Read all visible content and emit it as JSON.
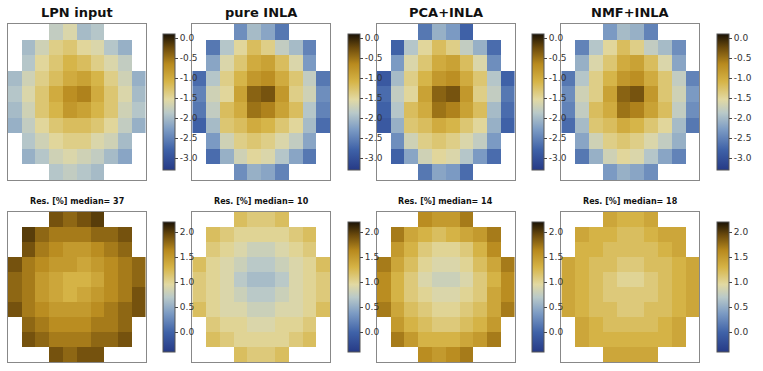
{
  "chart_data": [
    {
      "type": "heatmap",
      "title": "LPN input",
      "tick_labels": false,
      "colorbar_range": [
        -3.3,
        0.1
      ],
      "colorbar_ticks": [
        {
          "value": 0,
          "label": "0.0"
        },
        {
          "value": -0.5,
          "label": "-0.5"
        },
        {
          "value": -1,
          "label": "-1.0"
        },
        {
          "value": -1.5,
          "label": "-1.5"
        },
        {
          "value": -2,
          "label": "-2.0"
        },
        {
          "value": -2.5,
          "label": "-2.5"
        },
        {
          "value": -3,
          "label": "-3.0"
        }
      ],
      "z": [
        [
          null,
          null,
          null,
          -1.8,
          -1.6,
          -2.0,
          -1.9,
          null,
          null,
          null
        ],
        [
          null,
          -2.0,
          -1.7,
          -1.4,
          -1.3,
          -1.5,
          -1.6,
          -1.9,
          -2.1,
          null
        ],
        [
          null,
          -1.9,
          -1.5,
          -1.3,
          -1.1,
          -1.2,
          -1.4,
          -1.6,
          -1.8,
          null
        ],
        [
          -2.0,
          -1.7,
          -1.4,
          -1.2,
          -1.0,
          -0.9,
          -1.1,
          -1.4,
          -1.7,
          -2.1
        ],
        [
          -1.9,
          -1.6,
          -1.3,
          -1.0,
          -0.7,
          -0.6,
          -1.0,
          -1.3,
          -1.6,
          -2.0
        ],
        [
          -2.0,
          -1.7,
          -1.3,
          -1.1,
          -0.8,
          -0.9,
          -1.1,
          -1.3,
          -1.7,
          -1.9
        ],
        [
          -2.1,
          -1.8,
          -1.5,
          -1.3,
          -1.2,
          -1.2,
          -1.3,
          -1.5,
          -1.8,
          -2.1
        ],
        [
          null,
          -1.9,
          -1.7,
          -1.5,
          -1.4,
          -1.4,
          -1.6,
          -1.7,
          -2.0,
          null
        ],
        [
          null,
          -2.1,
          -1.9,
          -1.7,
          -1.6,
          -1.7,
          -1.8,
          -2.0,
          -2.2,
          null
        ],
        [
          null,
          null,
          null,
          -1.9,
          -1.8,
          -1.9,
          -2.0,
          null,
          null,
          null
        ]
      ]
    },
    {
      "type": "heatmap",
      "title": "pure INLA",
      "tick_labels": false,
      "colorbar_range": [
        -3.3,
        0.1
      ],
      "colorbar_ticks": [
        {
          "value": 0,
          "label": "0.0"
        },
        {
          "value": -0.5,
          "label": "-0.5"
        },
        {
          "value": -1,
          "label": "-1.0"
        },
        {
          "value": -1.5,
          "label": "-1.5"
        },
        {
          "value": -2,
          "label": "-2.0"
        },
        {
          "value": -2.5,
          "label": "-2.5"
        },
        {
          "value": -3,
          "label": "-3.0"
        }
      ],
      "z": [
        [
          null,
          null,
          null,
          -2.4,
          -2.0,
          -2.2,
          -2.6,
          null,
          null,
          null
        ],
        [
          null,
          -2.6,
          -1.9,
          -1.5,
          -1.2,
          -1.4,
          -1.8,
          -2.0,
          -2.5,
          null
        ],
        [
          null,
          -2.2,
          -1.6,
          -1.3,
          -1.0,
          -0.9,
          -1.2,
          -1.6,
          -2.3,
          null
        ],
        [
          -2.7,
          -1.9,
          -1.4,
          -1.1,
          -0.8,
          -0.7,
          -1.0,
          -1.3,
          -1.8,
          -2.6
        ],
        [
          -2.5,
          -1.7,
          -1.5,
          -0.9,
          -0.4,
          -0.3,
          -0.8,
          -1.4,
          -1.7,
          -2.4
        ],
        [
          -2.6,
          -1.8,
          -1.2,
          -1.0,
          -0.5,
          -0.6,
          -0.9,
          -1.2,
          -1.9,
          -2.5
        ],
        [
          -2.8,
          -2.0,
          -1.3,
          -1.2,
          -1.0,
          -1.1,
          -1.3,
          -1.5,
          -2.0,
          -2.7
        ],
        [
          null,
          -2.3,
          -1.7,
          -1.4,
          -1.3,
          -1.4,
          -1.6,
          -1.8,
          -2.2,
          null
        ],
        [
          null,
          -2.7,
          -2.1,
          -1.7,
          -1.5,
          -1.6,
          -1.9,
          -2.2,
          -2.6,
          null
        ],
        [
          null,
          null,
          null,
          -2.4,
          -2.1,
          -2.2,
          -2.5,
          null,
          null,
          null
        ]
      ]
    },
    {
      "type": "heatmap",
      "title": "PCA+INLA",
      "tick_labels": false,
      "colorbar_range": [
        -3.3,
        0.1
      ],
      "colorbar_ticks": [
        {
          "value": 0,
          "label": "0.0"
        },
        {
          "value": -0.5,
          "label": "-0.5"
        },
        {
          "value": -1,
          "label": "-1.0"
        },
        {
          "value": -1.5,
          "label": "-1.5"
        },
        {
          "value": -2,
          "label": "-2.0"
        },
        {
          "value": -2.5,
          "label": "-2.5"
        },
        {
          "value": -3,
          "label": "-3.0"
        }
      ],
      "z": [
        [
          null,
          null,
          null,
          -2.6,
          -2.1,
          -2.3,
          -2.8,
          null,
          null,
          null
        ],
        [
          null,
          -2.8,
          -1.9,
          -1.5,
          -1.2,
          -1.4,
          -1.8,
          -2.1,
          -2.7,
          null
        ],
        [
          null,
          -2.3,
          -1.6,
          -1.3,
          -1.0,
          -0.9,
          -1.2,
          -1.6,
          -2.4,
          null
        ],
        [
          -2.9,
          -2.0,
          -1.4,
          -1.1,
          -0.8,
          -0.7,
          -1.0,
          -1.3,
          -1.9,
          -2.8
        ],
        [
          -2.7,
          -1.8,
          -1.5,
          -0.9,
          -0.4,
          -0.3,
          -0.8,
          -1.4,
          -1.8,
          -2.6
        ],
        [
          -2.8,
          -1.9,
          -1.2,
          -1.0,
          -0.5,
          -0.6,
          -0.9,
          -1.2,
          -2.0,
          -2.7
        ],
        [
          -2.9,
          -2.1,
          -1.3,
          -1.2,
          -1.0,
          -1.1,
          -1.3,
          -1.5,
          -2.1,
          -2.8
        ],
        [
          null,
          -2.4,
          -1.7,
          -1.4,
          -1.3,
          -1.4,
          -1.6,
          -1.8,
          -2.3,
          null
        ],
        [
          null,
          -2.8,
          -2.2,
          -1.7,
          -1.5,
          -1.6,
          -1.9,
          -2.3,
          -2.7,
          null
        ],
        [
          null,
          null,
          null,
          -2.6,
          -2.2,
          -2.3,
          -2.7,
          null,
          null,
          null
        ]
      ]
    },
    {
      "type": "heatmap",
      "title": "NMF+INLA",
      "tick_labels": false,
      "colorbar_range": [
        -3.3,
        0.1
      ],
      "colorbar_ticks": [
        {
          "value": 0,
          "label": "0.0"
        },
        {
          "value": -0.5,
          "label": "-0.5"
        },
        {
          "value": -1,
          "label": "-1.0"
        },
        {
          "value": -1.5,
          "label": "-1.5"
        },
        {
          "value": -2,
          "label": "-2.0"
        },
        {
          "value": -2.5,
          "label": "-2.5"
        },
        {
          "value": -3,
          "label": "-3.0"
        }
      ],
      "z": [
        [
          null,
          null,
          null,
          -2.3,
          -2.0,
          -2.1,
          -2.5,
          null,
          null,
          null
        ],
        [
          null,
          -2.5,
          -1.9,
          -1.5,
          -1.2,
          -1.4,
          -1.8,
          -2.0,
          -2.4,
          null
        ],
        [
          null,
          -2.1,
          -1.6,
          -1.3,
          -1.0,
          -0.9,
          -1.2,
          -1.6,
          -2.2,
          null
        ],
        [
          -2.6,
          -1.9,
          -1.4,
          -1.1,
          -0.8,
          -0.7,
          -1.0,
          -1.3,
          -1.8,
          -2.5
        ],
        [
          -2.4,
          -1.7,
          -1.4,
          -0.9,
          -0.4,
          -0.3,
          -0.8,
          -1.3,
          -1.7,
          -2.3
        ],
        [
          -2.5,
          -1.8,
          -1.2,
          -1.0,
          -0.5,
          -0.6,
          -0.9,
          -1.2,
          -1.8,
          -2.4
        ],
        [
          -2.7,
          -2.0,
          -1.3,
          -1.2,
          -1.0,
          -1.1,
          -1.3,
          -1.5,
          -2.0,
          -2.6
        ],
        [
          null,
          -2.2,
          -1.7,
          -1.4,
          -1.3,
          -1.4,
          -1.6,
          -1.8,
          -2.1,
          null
        ],
        [
          null,
          -2.6,
          -2.1,
          -1.7,
          -1.5,
          -1.6,
          -1.9,
          -2.2,
          -2.5,
          null
        ],
        [
          null,
          null,
          null,
          -2.3,
          -2.1,
          -2.2,
          -2.4,
          null,
          null,
          null
        ]
      ]
    },
    {
      "type": "heatmap",
      "title": "Res. [%] median= 37",
      "tick_labels": false,
      "colorbar_range": [
        -0.4,
        2.2
      ],
      "colorbar_ticks": [
        {
          "value": 0,
          "label": "0.0"
        },
        {
          "value": 0.5,
          "label": "0.5"
        },
        {
          "value": 1,
          "label": "1.0"
        },
        {
          "value": 1.5,
          "label": "1.5"
        },
        {
          "value": 2,
          "label": "2.0"
        }
      ],
      "z": [
        [
          null,
          null,
          null,
          1.9,
          1.8,
          1.9,
          2.0,
          null,
          null,
          null
        ],
        [
          null,
          2.0,
          1.8,
          1.7,
          1.7,
          1.7,
          1.8,
          1.8,
          1.9,
          null
        ],
        [
          null,
          1.9,
          1.7,
          1.6,
          1.5,
          1.5,
          1.6,
          1.7,
          1.8,
          null
        ],
        [
          1.9,
          1.7,
          1.6,
          1.5,
          1.5,
          1.4,
          1.5,
          1.6,
          1.7,
          1.8
        ],
        [
          1.8,
          1.7,
          1.5,
          1.4,
          1.3,
          1.3,
          1.4,
          1.6,
          1.7,
          1.8
        ],
        [
          1.8,
          1.7,
          1.5,
          1.4,
          1.3,
          1.4,
          1.5,
          1.6,
          1.7,
          1.9
        ],
        [
          1.9,
          1.7,
          1.6,
          1.5,
          1.5,
          1.5,
          1.6,
          1.7,
          1.8,
          1.9
        ],
        [
          null,
          1.8,
          1.7,
          1.6,
          1.6,
          1.6,
          1.7,
          1.7,
          1.8,
          null
        ],
        [
          null,
          1.9,
          1.8,
          1.7,
          1.7,
          1.7,
          1.8,
          1.8,
          1.9,
          null
        ],
        [
          null,
          null,
          null,
          1.9,
          1.8,
          1.9,
          1.9,
          null,
          null,
          null
        ]
      ]
    },
    {
      "type": "heatmap",
      "title": "Res. [%] median= 10",
      "tick_labels": false,
      "colorbar_range": [
        -0.4,
        2.2
      ],
      "colorbar_ticks": [
        {
          "value": 0,
          "label": "0.0"
        },
        {
          "value": 0.5,
          "label": "0.5"
        },
        {
          "value": 1,
          "label": "1.0"
        },
        {
          "value": 1.5,
          "label": "1.5"
        },
        {
          "value": 2,
          "label": "2.0"
        }
      ],
      "z": [
        [
          null,
          null,
          null,
          1.2,
          1.1,
          1.1,
          1.2,
          null,
          null,
          null
        ],
        [
          null,
          1.2,
          1.1,
          1.0,
          1.0,
          1.0,
          1.0,
          1.1,
          1.2,
          null
        ],
        [
          null,
          1.1,
          1.0,
          0.9,
          0.8,
          0.8,
          0.9,
          1.0,
          1.1,
          null
        ],
        [
          1.2,
          1.0,
          0.9,
          0.8,
          0.7,
          0.7,
          0.8,
          0.9,
          1.0,
          1.2
        ],
        [
          1.1,
          1.0,
          0.9,
          0.7,
          0.6,
          0.6,
          0.7,
          0.9,
          1.0,
          1.1
        ],
        [
          1.1,
          1.0,
          0.9,
          0.8,
          0.7,
          0.7,
          0.8,
          0.9,
          1.0,
          1.1
        ],
        [
          1.2,
          1.0,
          0.9,
          0.9,
          0.8,
          0.8,
          0.9,
          0.9,
          1.0,
          1.2
        ],
        [
          null,
          1.1,
          1.0,
          1.0,
          0.9,
          0.9,
          1.0,
          1.0,
          1.1,
          null
        ],
        [
          null,
          1.2,
          1.1,
          1.0,
          1.0,
          1.0,
          1.0,
          1.1,
          1.2,
          null
        ],
        [
          null,
          null,
          null,
          1.2,
          1.1,
          1.1,
          1.2,
          null,
          null,
          null
        ]
      ]
    },
    {
      "type": "heatmap",
      "title": "Res. [%] median= 14",
      "tick_labels": false,
      "colorbar_range": [
        -0.4,
        2.2
      ],
      "colorbar_ticks": [
        {
          "value": 0,
          "label": "0.0"
        },
        {
          "value": 0.5,
          "label": "0.5"
        },
        {
          "value": 1,
          "label": "1.0"
        },
        {
          "value": 1.5,
          "label": "1.5"
        },
        {
          "value": 2,
          "label": "2.0"
        }
      ],
      "z": [
        [
          null,
          null,
          null,
          1.6,
          1.5,
          1.5,
          1.7,
          null,
          null,
          null
        ],
        [
          null,
          1.7,
          1.4,
          1.3,
          1.2,
          1.3,
          1.4,
          1.5,
          1.7,
          null
        ],
        [
          null,
          1.5,
          1.3,
          1.1,
          1.0,
          1.0,
          1.1,
          1.3,
          1.6,
          null
        ],
        [
          1.7,
          1.4,
          1.2,
          1.0,
          0.9,
          0.9,
          1.0,
          1.2,
          1.4,
          1.7
        ],
        [
          1.6,
          1.3,
          1.1,
          0.9,
          0.8,
          0.8,
          0.9,
          1.1,
          1.3,
          1.6
        ],
        [
          1.6,
          1.3,
          1.1,
          1.0,
          0.9,
          0.9,
          1.0,
          1.1,
          1.4,
          1.6
        ],
        [
          1.7,
          1.4,
          1.2,
          1.1,
          1.0,
          1.0,
          1.1,
          1.2,
          1.4,
          1.7
        ],
        [
          null,
          1.5,
          1.3,
          1.2,
          1.1,
          1.1,
          1.2,
          1.3,
          1.5,
          null
        ],
        [
          null,
          1.7,
          1.5,
          1.3,
          1.3,
          1.3,
          1.4,
          1.5,
          1.7,
          null
        ],
        [
          null,
          null,
          null,
          1.6,
          1.5,
          1.6,
          1.7,
          null,
          null,
          null
        ]
      ]
    },
    {
      "type": "heatmap",
      "title": "Res. [%] median= 18",
      "tick_labels": false,
      "colorbar_range": [
        -0.4,
        2.2
      ],
      "colorbar_ticks": [
        {
          "value": 0,
          "label": "0.0"
        },
        {
          "value": 0.5,
          "label": "0.5"
        },
        {
          "value": 1,
          "label": "1.0"
        },
        {
          "value": 1.5,
          "label": "1.5"
        },
        {
          "value": 2,
          "label": "2.0"
        }
      ],
      "z": [
        [
          null,
          null,
          null,
          1.4,
          1.3,
          1.3,
          1.4,
          null,
          null,
          null
        ],
        [
          null,
          1.4,
          1.3,
          1.3,
          1.2,
          1.2,
          1.3,
          1.4,
          1.4,
          null
        ],
        [
          null,
          1.3,
          1.3,
          1.2,
          1.2,
          1.2,
          1.2,
          1.3,
          1.4,
          null
        ],
        [
          1.4,
          1.3,
          1.2,
          1.2,
          1.1,
          1.1,
          1.2,
          1.2,
          1.3,
          1.4
        ],
        [
          1.4,
          1.3,
          1.2,
          1.1,
          1.0,
          1.0,
          1.1,
          1.2,
          1.3,
          1.4
        ],
        [
          1.4,
          1.3,
          1.2,
          1.1,
          1.1,
          1.1,
          1.1,
          1.2,
          1.3,
          1.4
        ],
        [
          1.4,
          1.3,
          1.2,
          1.2,
          1.1,
          1.1,
          1.2,
          1.2,
          1.3,
          1.4
        ],
        [
          null,
          1.4,
          1.3,
          1.2,
          1.2,
          1.2,
          1.2,
          1.3,
          1.4,
          null
        ],
        [
          null,
          1.4,
          1.3,
          1.3,
          1.3,
          1.3,
          1.3,
          1.3,
          1.4,
          null
        ],
        [
          null,
          null,
          null,
          1.4,
          1.4,
          1.4,
          1.4,
          null,
          null,
          null
        ]
      ]
    }
  ]
}
